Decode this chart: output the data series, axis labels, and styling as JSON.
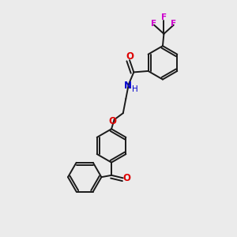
{
  "background_color": "#ebebeb",
  "bond_color": "#1a1a1a",
  "atom_colors": {
    "O": "#dd0000",
    "N": "#0000cc",
    "F": "#cc00cc",
    "H": "#444444"
  },
  "figsize": [
    3.0,
    3.0
  ],
  "dpi": 100,
  "xlim": [
    0,
    10
  ],
  "ylim": [
    0,
    10
  ]
}
